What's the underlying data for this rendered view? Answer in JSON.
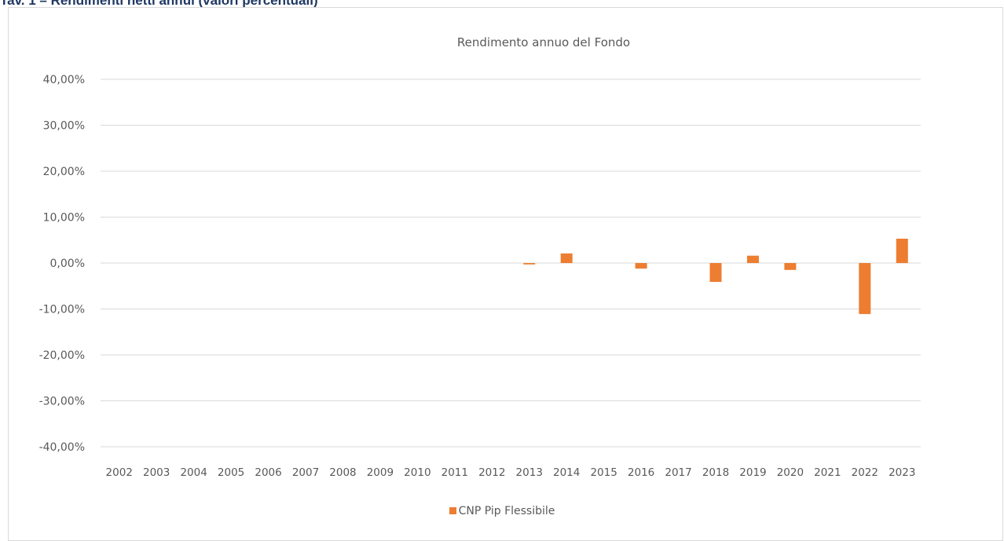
{
  "document": {
    "heading": "Tav. 1 – Rendimenti netti annui (valori percentuali)"
  },
  "chart_data": {
    "type": "bar",
    "title": "Rendimento annuo del Fondo",
    "xlabel": "",
    "ylabel": "",
    "ylim": [
      -40,
      40
    ],
    "yticks": [
      "40,00%",
      "30,00%",
      "20,00%",
      "10,00%",
      "0,00%",
      "-10,00%",
      "-20,00%",
      "-30,00%",
      "-40,00%"
    ],
    "ytick_values": [
      40,
      30,
      20,
      10,
      0,
      -10,
      -20,
      -30,
      -40
    ],
    "categories": [
      "2002",
      "2003",
      "2004",
      "2005",
      "2006",
      "2007",
      "2008",
      "2009",
      "2010",
      "2011",
      "2012",
      "2013",
      "2014",
      "2015",
      "2016",
      "2017",
      "2018",
      "2019",
      "2020",
      "2021",
      "2022",
      "2023"
    ],
    "series": [
      {
        "name": "CNP Pip Flessibile",
        "color": "#ed7d31",
        "values": [
          null,
          null,
          null,
          null,
          null,
          null,
          null,
          null,
          null,
          null,
          null,
          -0.3,
          2.1,
          null,
          -1.2,
          null,
          -4.1,
          1.6,
          -1.5,
          null,
          -11.1,
          5.3
        ]
      }
    ],
    "grid": true,
    "legend_position": "bottom"
  }
}
